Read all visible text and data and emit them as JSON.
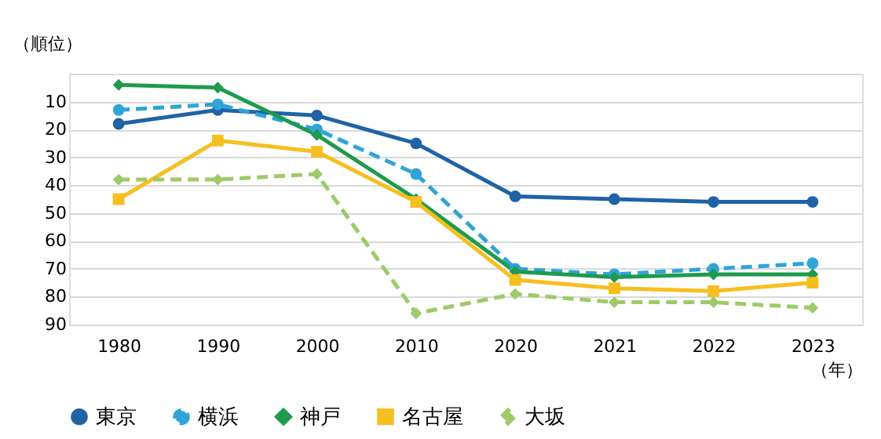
{
  "chart_data": {
    "type": "line",
    "xlabel": "（年）",
    "ylabel": "（順位）",
    "categories": [
      "1980",
      "1990",
      "2000",
      "2010",
      "2020",
      "2021",
      "2022",
      "2023"
    ],
    "series": [
      {
        "name": "東京",
        "color": "#1f63a6",
        "marker": "circle",
        "line_style": "solid",
        "values": [
          18,
          13,
          15,
          25,
          44,
          45,
          46,
          46
        ]
      },
      {
        "name": "横浜",
        "color": "#2fa4d8",
        "marker": "circle",
        "line_style": "dashed",
        "values": [
          13,
          11,
          20,
          36,
          70,
          72,
          70,
          68
        ]
      },
      {
        "name": "神戸",
        "color": "#1f9a4e",
        "marker": "diamond",
        "line_style": "solid",
        "values": [
          4,
          5,
          22,
          45,
          71,
          73,
          72,
          72
        ]
      },
      {
        "name": "名古屋",
        "color": "#f5bf1f",
        "marker": "square",
        "line_style": "solid",
        "values": [
          45,
          24,
          28,
          46,
          74,
          77,
          78,
          75
        ]
      },
      {
        "name": "大坂",
        "color": "#9ccb68",
        "marker": "diamond",
        "line_style": "dashed",
        "values": [
          38,
          38,
          36,
          86,
          79,
          82,
          82,
          84
        ]
      }
    ],
    "ylim": [
      90,
      0
    ],
    "yticks": [
      {
        "value": 0,
        "label": null
      },
      10,
      20,
      30,
      40,
      50,
      60,
      70,
      80,
      90
    ],
    "grid": "y",
    "legend": "bottom"
  }
}
